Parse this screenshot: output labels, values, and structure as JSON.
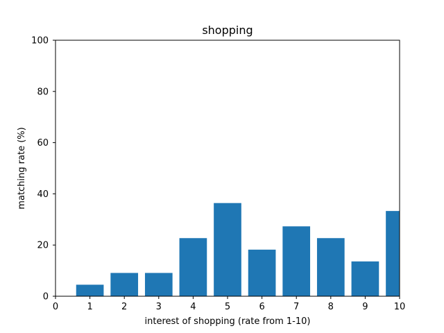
{
  "chart_data": {
    "type": "bar",
    "title": "shopping",
    "xlabel": "interest of shopping (rate from 1-10)",
    "ylabel": "matching rate (%)",
    "categories": [
      1,
      2,
      3,
      4,
      5,
      6,
      7,
      8,
      9,
      10
    ],
    "values": [
      4.5,
      9.1,
      9.1,
      22.7,
      36.4,
      18.2,
      27.3,
      22.7,
      13.6,
      33.3
    ],
    "xlim": [
      0,
      10
    ],
    "ylim": [
      0,
      100
    ],
    "xticks": [
      0,
      1,
      2,
      3,
      4,
      5,
      6,
      7,
      8,
      9,
      10
    ],
    "yticks": [
      0,
      20,
      40,
      60,
      80,
      100
    ],
    "bar_color": "#1f77b4",
    "grid": false
  }
}
